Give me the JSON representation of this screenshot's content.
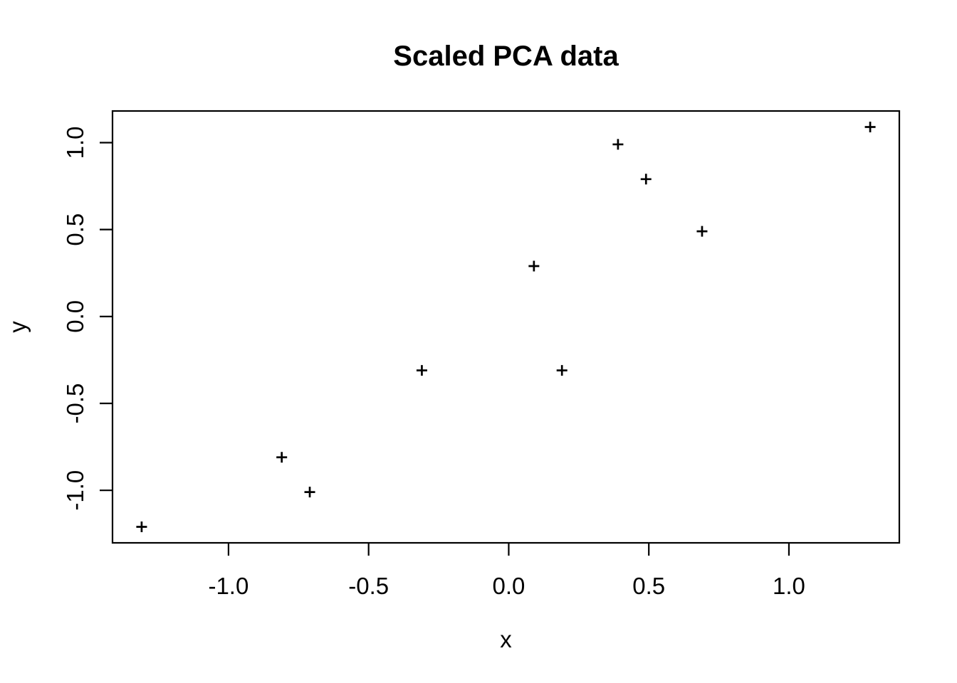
{
  "chart_data": {
    "type": "scatter",
    "title": "Scaled PCA data",
    "xlabel": "x",
    "ylabel": "y",
    "marker": "plus",
    "marker_size": 15,
    "color": "#000000",
    "background": "#ffffff",
    "grid": false,
    "legend": "none",
    "xlim": [
      -1.414,
      1.394
    ],
    "ylim": [
      -1.302,
      1.182
    ],
    "xticks": [
      -1.0,
      -0.5,
      0.0,
      0.5,
      1.0
    ],
    "yticks": [
      -1.0,
      -0.5,
      0.0,
      0.5,
      1.0
    ],
    "xtick_labels": [
      "-1.0",
      "-0.5",
      "0.0",
      "0.5",
      "1.0"
    ],
    "ytick_labels": [
      "-1.0",
      "-0.5",
      "0.0",
      "0.5",
      "1.0"
    ],
    "x": [
      0.69,
      -1.31,
      0.39,
      0.09,
      1.29,
      0.49,
      0.19,
      -0.81,
      -0.31,
      -0.71
    ],
    "y": [
      0.49,
      -1.21,
      0.99,
      0.29,
      1.09,
      0.79,
      -0.31,
      -0.81,
      -0.31,
      -1.01
    ]
  }
}
